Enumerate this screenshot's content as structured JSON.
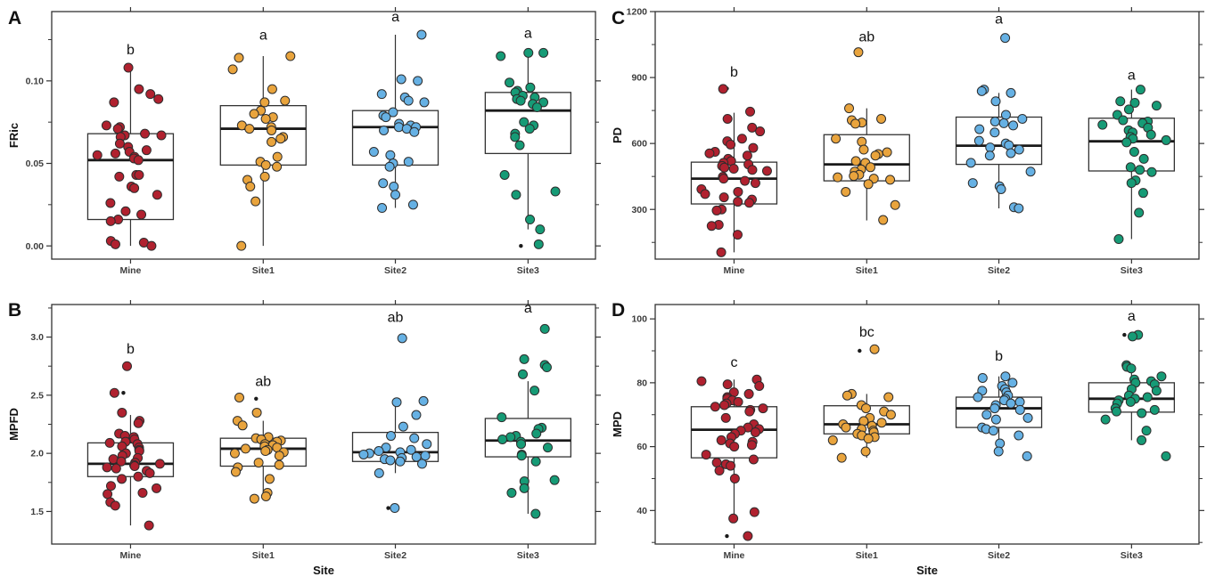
{
  "style": {
    "background": "#ffffff",
    "palette": {
      "Mine": "#B0212F",
      "Site1": "#E9A43D",
      "Site2": "#66B1E4",
      "Site3": "#169B76"
    },
    "point_stroke": "#2d2d2d",
    "box_stroke": "#333333",
    "median_color": "#1a1a1a",
    "outlier_color": "#1b1b1b",
    "axis_text_color": "#3d3d3d",
    "title_text_color": "#111111",
    "panel_border_color": "#333333"
  },
  "chart_data": [
    {
      "type": "boxplot-jitter",
      "panel": "A",
      "ylabel": "FRic",
      "xlabel": "",
      "ylim": [
        -0.008,
        0.142
      ],
      "yticks": [
        0.0,
        0.05,
        0.1
      ],
      "ytick_labels": [
        "0.00",
        "0.05",
        "0.10"
      ],
      "minor_ticks": [
        0.025,
        0.075,
        0.125
      ],
      "categories": [
        "Mine",
        "Site1",
        "Site2",
        "Site3"
      ],
      "groups": [
        {
          "site": "Mine",
          "color": "Mine",
          "letter": "b",
          "letter_y": 0.116,
          "box": {
            "q1": 0.016,
            "median": 0.052,
            "q3": 0.068,
            "whisker_low": 0.0,
            "whisker_high": 0.108
          },
          "outliers": [],
          "points": [
            0.108,
            0.095,
            0.092,
            0.089,
            0.087,
            0.073,
            0.072,
            0.071,
            0.068,
            0.067,
            0.067,
            0.066,
            0.062,
            0.06,
            0.058,
            0.057,
            0.056,
            0.055,
            0.054,
            0.053,
            0.052,
            0.043,
            0.043,
            0.042,
            0.036,
            0.035,
            0.031,
            0.026,
            0.021,
            0.019,
            0.016,
            0.015,
            0.003,
            0.002,
            0.001,
            0.0
          ]
        },
        {
          "site": "Site1",
          "color": "Site1",
          "letter": "a",
          "letter_y": 0.125,
          "box": {
            "q1": 0.049,
            "median": 0.071,
            "q3": 0.085,
            "whisker_low": 0.0,
            "whisker_high": 0.115
          },
          "outliers": [],
          "points": [
            0.115,
            0.114,
            0.107,
            0.095,
            0.088,
            0.087,
            0.082,
            0.08,
            0.078,
            0.077,
            0.073,
            0.072,
            0.071,
            0.07,
            0.066,
            0.065,
            0.063,
            0.054,
            0.051,
            0.049,
            0.048,
            0.042,
            0.04,
            0.036,
            0.027,
            0.0
          ]
        },
        {
          "site": "Site2",
          "color": "Site2",
          "letter": "a",
          "letter_y": 0.136,
          "box": {
            "q1": 0.049,
            "median": 0.072,
            "q3": 0.082,
            "whisker_low": 0.023,
            "whisker_high": 0.128
          },
          "outliers": [],
          "points": [
            0.128,
            0.101,
            0.1,
            0.092,
            0.09,
            0.088,
            0.087,
            0.081,
            0.079,
            0.078,
            0.074,
            0.073,
            0.072,
            0.072,
            0.071,
            0.07,
            0.069,
            0.057,
            0.055,
            0.051,
            0.05,
            0.048,
            0.038,
            0.036,
            0.031,
            0.025,
            0.023
          ]
        },
        {
          "site": "Site3",
          "color": "Site3",
          "letter": "a",
          "letter_y": 0.126,
          "box": {
            "q1": 0.056,
            "median": 0.082,
            "q3": 0.093,
            "whisker_low": 0.01,
            "whisker_high": 0.117
          },
          "outliers": [
            0.0
          ],
          "points": [
            0.117,
            0.117,
            0.115,
            0.099,
            0.096,
            0.094,
            0.093,
            0.091,
            0.09,
            0.089,
            0.088,
            0.087,
            0.086,
            0.084,
            0.075,
            0.073,
            0.071,
            0.068,
            0.066,
            0.061,
            0.043,
            0.033,
            0.031,
            0.016,
            0.01,
            0.001
          ]
        }
      ]
    },
    {
      "type": "boxplot-jitter",
      "panel": "B",
      "ylabel": "MPFD",
      "xlabel": "Site",
      "ylim": [
        1.22,
        3.28
      ],
      "yticks": [
        1.5,
        2.0,
        2.5,
        3.0
      ],
      "ytick_labels": [
        "1.5",
        "2.0",
        "2.5",
        "3.0"
      ],
      "minor_ticks": [
        1.75,
        2.25,
        2.75,
        3.25
      ],
      "categories": [
        "Mine",
        "Site1",
        "Site2",
        "Site3"
      ],
      "groups": [
        {
          "site": "Mine",
          "color": "Mine",
          "letter": "b",
          "letter_y": 2.86,
          "box": {
            "q1": 1.8,
            "median": 1.91,
            "q3": 2.09,
            "whisker_low": 1.38,
            "whisker_high": 2.33
          },
          "outliers": [
            2.52
          ],
          "points": [
            2.75,
            2.52,
            2.35,
            2.28,
            2.26,
            2.17,
            2.15,
            2.14,
            2.12,
            2.1,
            2.09,
            2.08,
            2.06,
            2.05,
            2.03,
            2.02,
            2.0,
            1.98,
            1.96,
            1.95,
            1.93,
            1.92,
            1.91,
            1.9,
            1.89,
            1.88,
            1.87,
            1.85,
            1.83,
            1.8,
            1.78,
            1.72,
            1.7,
            1.66,
            1.65,
            1.58,
            1.55,
            1.38
          ]
        },
        {
          "site": "Site1",
          "color": "Site1",
          "letter": "ab",
          "letter_y": 2.58,
          "box": {
            "q1": 1.89,
            "median": 2.04,
            "q3": 2.13,
            "whisker_low": 1.61,
            "whisker_high": 2.28
          },
          "outliers": [
            2.47
          ],
          "points": [
            2.48,
            2.35,
            2.28,
            2.24,
            2.14,
            2.13,
            2.12,
            2.11,
            2.1,
            2.08,
            2.07,
            2.06,
            2.05,
            2.04,
            2.03,
            2.02,
            2.01,
            2.0,
            1.98,
            1.92,
            1.9,
            1.88,
            1.84,
            1.78,
            1.66,
            1.63,
            1.61
          ]
        },
        {
          "site": "Site2",
          "color": "Site2",
          "letter": "ab",
          "letter_y": 3.13,
          "box": {
            "q1": 1.93,
            "median": 2.01,
            "q3": 2.18,
            "whisker_low": 1.83,
            "whisker_high": 2.45
          },
          "outliers": [
            1.53
          ],
          "points": [
            2.99,
            2.45,
            2.44,
            2.33,
            2.23,
            2.15,
            2.13,
            2.08,
            2.05,
            2.03,
            2.02,
            2.01,
            2.0,
            1.99,
            1.98,
            1.97,
            1.96,
            1.95,
            1.94,
            1.93,
            1.91,
            1.83,
            1.53
          ]
        },
        {
          "site": "Site3",
          "color": "Site3",
          "letter": "a",
          "letter_y": 3.21,
          "box": {
            "q1": 1.97,
            "median": 2.11,
            "q3": 2.3,
            "whisker_low": 1.48,
            "whisker_high": 2.62
          },
          "outliers": [],
          "points": [
            3.07,
            2.81,
            2.76,
            2.74,
            2.68,
            2.54,
            2.31,
            2.22,
            2.21,
            2.17,
            2.15,
            2.14,
            2.12,
            2.1,
            2.08,
            2.05,
            1.99,
            1.98,
            1.93,
            1.77,
            1.76,
            1.7,
            1.66,
            1.48
          ]
        }
      ]
    },
    {
      "type": "boxplot-jitter",
      "panel": "C",
      "ylabel": "PD",
      "xlabel": "",
      "ylim": [
        74,
        1200
      ],
      "yticks": [
        300,
        600,
        900,
        1200
      ],
      "ytick_labels": [
        "300",
        "600",
        "900",
        "1200"
      ],
      "minor_ticks": [
        150,
        450,
        750,
        1050
      ],
      "categories": [
        "Mine",
        "Site1",
        "Site2",
        "Site3"
      ],
      "groups": [
        {
          "site": "Mine",
          "color": "Mine",
          "letter": "b",
          "letter_y": 905,
          "box": {
            "q1": 325,
            "median": 440,
            "q3": 515,
            "whisker_low": 105,
            "whisker_high": 740
          },
          "outliers": [
            850
          ],
          "points": [
            848,
            745,
            712,
            672,
            655,
            622,
            610,
            595,
            580,
            562,
            555,
            545,
            530,
            520,
            512,
            505,
            498,
            490,
            485,
            480,
            475,
            448,
            440,
            430,
            420,
            392,
            380,
            370,
            355,
            345,
            335,
            330,
            300,
            295,
            230,
            225,
            185,
            105
          ]
        },
        {
          "site": "Site1",
          "color": "Site1",
          "letter": "ab",
          "letter_y": 1065,
          "box": {
            "q1": 430,
            "median": 505,
            "q3": 640,
            "whisker_low": 250,
            "whisker_high": 760
          },
          "outliers": [
            1010
          ],
          "points": [
            1015,
            760,
            712,
            706,
            695,
            690,
            622,
            608,
            572,
            560,
            552,
            545,
            520,
            512,
            492,
            482,
            472,
            458,
            452,
            446,
            440,
            435,
            415,
            380,
            320,
            252
          ]
        },
        {
          "site": "Site2",
          "color": "Site2",
          "letter": "a",
          "letter_y": 1145,
          "box": {
            "q1": 505,
            "median": 590,
            "q3": 720,
            "whisker_low": 305,
            "whisker_high": 830
          },
          "outliers": [],
          "points": [
            1080,
            845,
            838,
            830,
            792,
            730,
            712,
            700,
            692,
            682,
            665,
            650,
            612,
            600,
            592,
            582,
            572,
            556,
            545,
            512,
            472,
            420,
            405,
            392,
            310,
            305
          ]
        },
        {
          "site": "Site3",
          "color": "Site3",
          "letter": "a",
          "letter_y": 890,
          "box": {
            "q1": 475,
            "median": 610,
            "q3": 715,
            "whisker_low": 165,
            "whisker_high": 845
          },
          "outliers": [],
          "points": [
            845,
            792,
            785,
            772,
            755,
            730,
            706,
            700,
            692,
            685,
            672,
            660,
            650,
            640,
            630,
            622,
            615,
            605,
            562,
            530,
            492,
            480,
            470,
            432,
            420,
            375,
            285,
            165
          ]
        }
      ]
    },
    {
      "type": "boxplot-jitter",
      "panel": "D",
      "ylabel": "MPD",
      "xlabel": "Site",
      "ylim": [
        29.5,
        104.5
      ],
      "yticks": [
        40,
        60,
        80,
        100
      ],
      "ytick_labels": [
        "40",
        "60",
        "80",
        "100"
      ],
      "minor_ticks": [
        30,
        50,
        70,
        90
      ],
      "categories": [
        "Mine",
        "Site1",
        "Site2",
        "Site3"
      ],
      "groups": [
        {
          "site": "Mine",
          "color": "Mine",
          "letter": "c",
          "letter_y": 85,
          "box": {
            "q1": 56.5,
            "median": 65.3,
            "q3": 72.5,
            "whisker_low": 37.5,
            "whisker_high": 81
          },
          "outliers": [
            32
          ],
          "points": [
            81,
            80.5,
            79.5,
            79,
            77,
            76.5,
            75.5,
            75,
            74.5,
            74,
            73.5,
            73,
            72.5,
            72,
            71.5,
            71,
            69,
            67,
            66,
            65.5,
            65,
            64.5,
            64,
            63,
            62,
            61.5,
            61,
            60.5,
            60,
            57.5,
            56,
            55,
            54.5,
            54,
            52.5,
            50,
            39.5,
            37.5,
            32
          ]
        },
        {
          "site": "Site1",
          "color": "Site1",
          "letter": "bc",
          "letter_y": 94.5,
          "box": {
            "q1": 64,
            "median": 67,
            "q3": 72.8,
            "whisker_low": 56.5,
            "whisker_high": 76.5
          },
          "outliers": [
            90
          ],
          "points": [
            90.5,
            76.5,
            76,
            75.5,
            73,
            72,
            71,
            70,
            69,
            68,
            67.5,
            67,
            66.5,
            66,
            65.5,
            65,
            64.5,
            64,
            63.5,
            63,
            62.5,
            62,
            58.5,
            56.5
          ]
        },
        {
          "site": "Site2",
          "color": "Site2",
          "letter": "b",
          "letter_y": 87,
          "box": {
            "q1": 66,
            "median": 72,
            "q3": 75.5,
            "whisker_low": 57,
            "whisker_high": 82
          },
          "outliers": [],
          "points": [
            82,
            81.5,
            80,
            79,
            78,
            77.5,
            77,
            76,
            75.5,
            75,
            74.5,
            74,
            73.5,
            73,
            72,
            71.5,
            70,
            69,
            68.5,
            66,
            65.5,
            65,
            63.5,
            61,
            58.5,
            57
          ]
        },
        {
          "site": "Site3",
          "color": "Site3",
          "letter": "a",
          "letter_y": 99.5,
          "box": {
            "q1": 70.8,
            "median": 75,
            "q3": 80,
            "whisker_low": 62,
            "whisker_high": 85.5
          },
          "outliers": [
            95
          ],
          "points": [
            95,
            94.5,
            85.5,
            85,
            84.5,
            82,
            81,
            80.5,
            80,
            79.5,
            78,
            77.5,
            76,
            75.5,
            75,
            74.5,
            74,
            73.5,
            72,
            71.5,
            71,
            70.5,
            68.5,
            65,
            62,
            57
          ]
        }
      ]
    }
  ]
}
